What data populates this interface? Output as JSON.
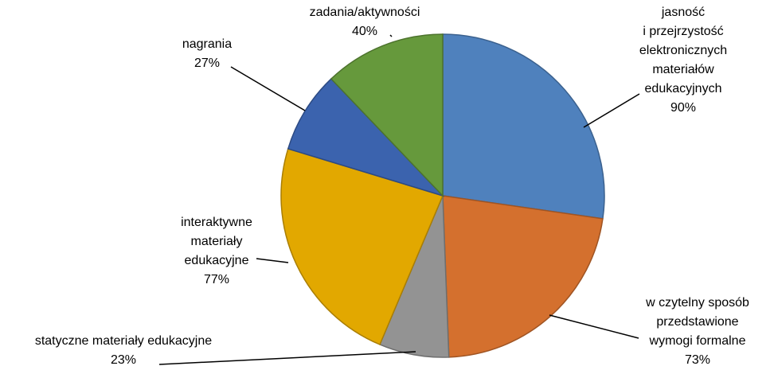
{
  "chart_data": {
    "type": "pie",
    "categories": [
      "jasność\ni przejrzystość\nelektronicznych\nmateriałów\nedukacyjnych",
      "w czytelny sposób\nprzedstawione\nwymogi formalne",
      "statyczne materiały edukacyjne",
      "interaktywne\nmateriały\nedukacyjne",
      "nagrania",
      "zadania/aktywności"
    ],
    "values": [
      90,
      73,
      23,
      77,
      27,
      40
    ],
    "value_labels": [
      "90%",
      "73%",
      "23%",
      "77%",
      "27%",
      "40%"
    ],
    "colors": [
      "#4f81bd",
      "#d4702e",
      "#939393",
      "#e2a800",
      "#3b63ae",
      "#66993c"
    ]
  }
}
